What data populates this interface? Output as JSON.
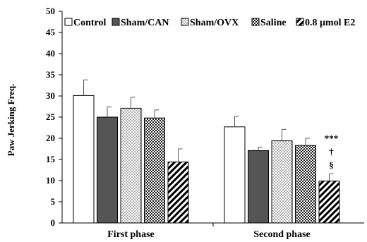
{
  "chart_data": {
    "type": "bar",
    "ylabel": "Paw Jerking Freq.",
    "xlabel": "",
    "title": "",
    "ylim": [
      0,
      50
    ],
    "yticks": [
      0,
      5,
      10,
      15,
      20,
      25,
      30,
      35,
      40,
      45,
      50
    ],
    "grid": false,
    "legend_position": "top",
    "categories": [
      "First phase",
      "Second phase"
    ],
    "series": [
      {
        "name": "Control",
        "values": [
          30.1,
          22.7
        ],
        "errors": [
          3.7,
          2.5
        ],
        "fill": "white"
      },
      {
        "name": "Sham/CAN",
        "values": [
          25.0,
          17.1
        ],
        "errors": [
          2.4,
          0.8
        ],
        "fill": "dark-gray"
      },
      {
        "name": "Sham/OVX",
        "values": [
          27.1,
          19.4
        ],
        "errors": [
          2.6,
          2.7
        ],
        "fill": "dotted"
      },
      {
        "name": "Saline",
        "values": [
          24.8,
          18.3
        ],
        "errors": [
          1.9,
          1.7
        ],
        "fill": "crosshatch"
      },
      {
        "name": "0.8 μmol E2",
        "values": [
          14.4,
          9.9
        ],
        "errors": [
          3.1,
          1.7
        ],
        "fill": "diagonal"
      }
    ],
    "annotations": [
      {
        "text": "***",
        "category": "Second phase",
        "series": "0.8 μmol E2"
      },
      {
        "text": "†",
        "category": "Second phase",
        "series": "0.8 μmol E2"
      },
      {
        "text": "§",
        "category": "Second phase",
        "series": "0.8 μmol E2"
      }
    ]
  }
}
